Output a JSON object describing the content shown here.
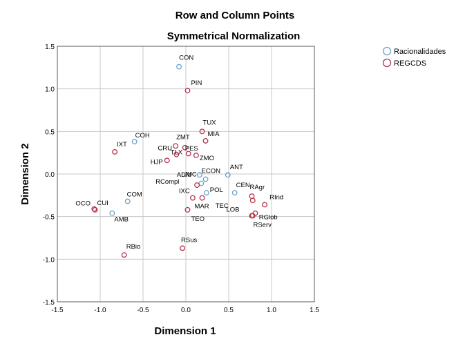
{
  "chart_data": {
    "type": "scatter",
    "title": "Row and Column Points",
    "subtitle": "Symmetrical Normalization",
    "xlabel": "Dimension 1",
    "ylabel": "Dimension 2",
    "xlim": [
      -1.5,
      1.5
    ],
    "ylim": [
      -1.5,
      1.5
    ],
    "x_ticks": [
      "-1.5",
      "-1.0",
      "-0.5",
      "0.0",
      "0.5",
      "1.0",
      "1.5"
    ],
    "y_ticks": [
      "1.5",
      "1.0",
      "0.5",
      "0.0",
      "-0.5",
      "-1.0",
      "-1.5"
    ],
    "grid": true,
    "legend_position": "top-right",
    "series": [
      {
        "name": "Racionalidades",
        "color": "#6aa3cf",
        "points": [
          {
            "label": "CON",
            "x": -0.08,
            "y": 1.26
          },
          {
            "label": "COH",
            "x": -0.6,
            "y": 0.38
          },
          {
            "label": "COM",
            "x": -0.68,
            "y": -0.32
          },
          {
            "label": "AMB",
            "x": -0.86,
            "y": -0.46
          },
          {
            "label": "ADM",
            "x": 0.16,
            "y": -0.01
          },
          {
            "label": "ECON",
            "x": 0.23,
            "y": -0.06
          },
          {
            "label": "JUC",
            "x": 0.18,
            "y": -0.11
          },
          {
            "label": "POL",
            "x": 0.24,
            "y": -0.22
          },
          {
            "label": "ANT",
            "x": 0.49,
            "y": -0.01
          },
          {
            "label": "CEN",
            "x": 0.57,
            "y": -0.22
          }
        ]
      },
      {
        "name": "REGCDS",
        "color": "#b5344a",
        "points": [
          {
            "label": "PIN",
            "x": 0.02,
            "y": 0.98
          },
          {
            "label": "TUX",
            "x": 0.19,
            "y": 0.5
          },
          {
            "label": "MIA",
            "x": 0.23,
            "y": 0.39
          },
          {
            "label": "IXT",
            "x": -0.83,
            "y": 0.26
          },
          {
            "label": "ZMT",
            "x": -0.12,
            "y": 0.33
          },
          {
            "label": "PES",
            "x": -0.01,
            "y": 0.31
          },
          {
            "label": "CRU",
            "x": -0.11,
            "y": 0.23
          },
          {
            "label": "TLX",
            "x": 0.03,
            "y": 0.24
          },
          {
            "label": "ZMO",
            "x": 0.12,
            "y": 0.22
          },
          {
            "label": "HJP",
            "x": -0.22,
            "y": 0.16
          },
          {
            "label": "RCompl",
            "x": 0.13,
            "y": -0.13
          },
          {
            "label": "IXC",
            "x": 0.08,
            "y": -0.28
          },
          {
            "label": "MAR",
            "x": 0.19,
            "y": -0.28
          },
          {
            "label": "TEO",
            "x": 0.02,
            "y": -0.42
          },
          {
            "label": "RAgr",
            "x": 0.77,
            "y": -0.26
          },
          {
            "label": "TEC",
            "x": 0.78,
            "y": -0.31
          },
          {
            "label": "RInd",
            "x": 0.92,
            "y": -0.36
          },
          {
            "label": "LOB",
            "x": 0.81,
            "y": -0.46
          },
          {
            "label": "RGlob",
            "x": 0.78,
            "y": -0.49
          },
          {
            "label": "RServ",
            "x": 0.77,
            "y": -0.49
          },
          {
            "label": "OCO",
            "x": -1.07,
            "y": -0.41
          },
          {
            "label": "CUI",
            "x": -1.06,
            "y": -0.42
          },
          {
            "label": "RBio",
            "x": -0.72,
            "y": -0.95
          },
          {
            "label": "RSus",
            "x": -0.04,
            "y": -0.87
          }
        ]
      }
    ]
  }
}
